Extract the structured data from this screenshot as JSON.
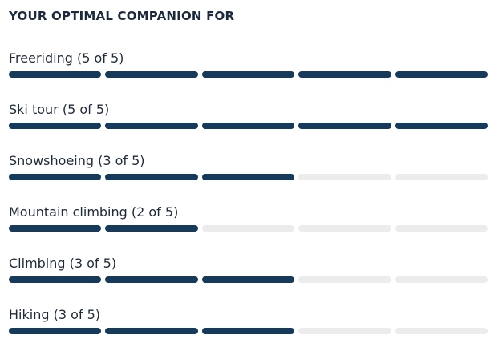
{
  "section": {
    "heading": "YOUR OPTIMAL COMPANION FOR",
    "segment_count": 5,
    "colors": {
      "filled": "#153a5c",
      "empty": "#ececec"
    },
    "ratings": [
      {
        "label": "Freeriding (5 of 5)",
        "score": 5
      },
      {
        "label": "Ski tour (5 of 5)",
        "score": 5
      },
      {
        "label": "Snowshoeing (3 of 5)",
        "score": 3
      },
      {
        "label": "Mountain climbing (2 of 5)",
        "score": 2
      },
      {
        "label": "Climbing (3 of 5)",
        "score": 3
      },
      {
        "label": "Hiking (3 of 5)",
        "score": 3
      }
    ]
  }
}
